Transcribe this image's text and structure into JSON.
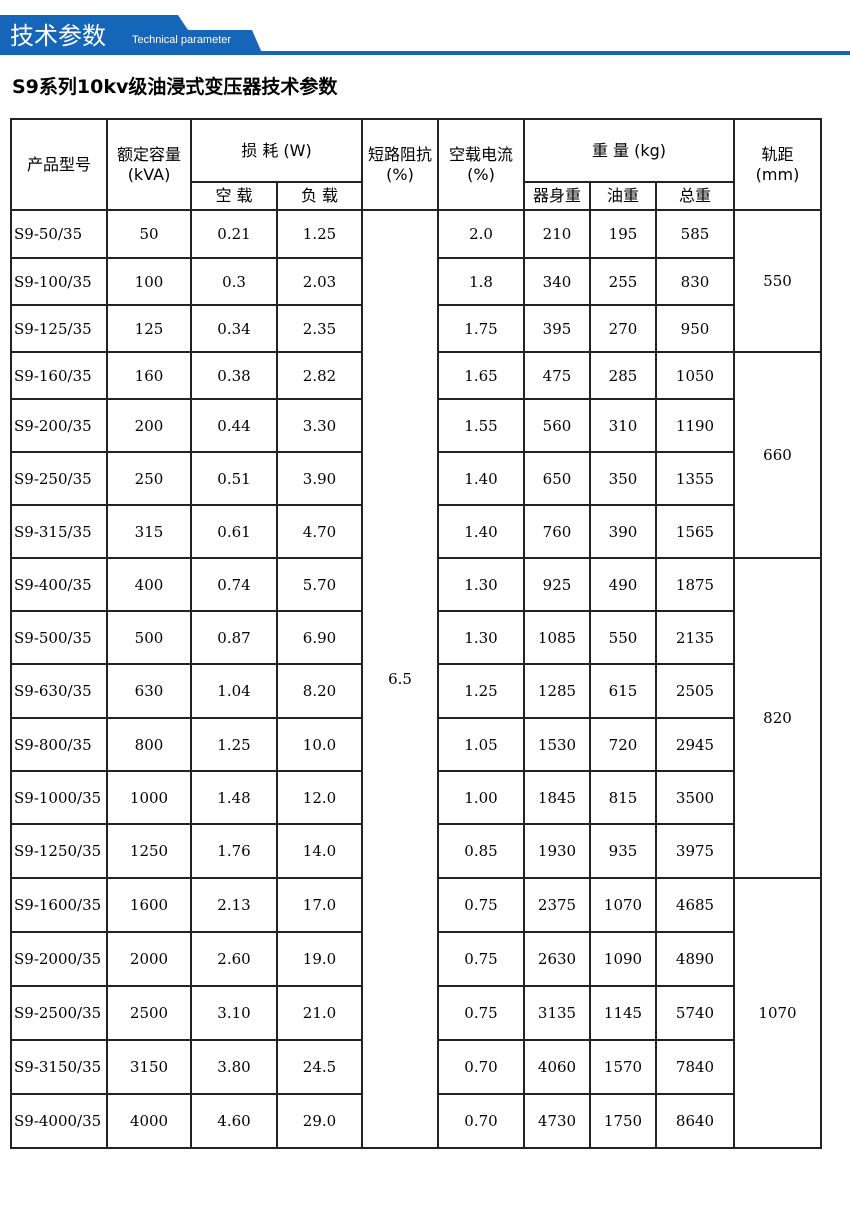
{
  "header": {
    "title": "技术参数",
    "subtitle": "Technical parameter",
    "accent": "#1565b8"
  },
  "doc_title": "S9系列10kv级油浸式变压器技术参数",
  "table": {
    "headers": {
      "model": "产品型号",
      "capacity": "额定容量",
      "capacity_unit": "(kVA)",
      "loss": "损 耗 (W)",
      "no_load": "空 载",
      "load": "负 载",
      "impedance": "短路阻抗",
      "impedance_unit": "(%)",
      "current": "空载电流",
      "current_unit": "(%)",
      "weight": "重 量 (kg)",
      "body": "器身重",
      "oil": "油重",
      "total": "总重",
      "rail": "轨距",
      "rail_unit": "(mm)"
    },
    "impedance": "6.5",
    "rows": [
      [
        "S9-50/35",
        "50",
        "0.21",
        "1.25",
        "2.0",
        "210",
        "195",
        "585"
      ],
      [
        "S9-100/35",
        "100",
        "0.3",
        "2.03",
        "1.8",
        "340",
        "255",
        "830"
      ],
      [
        "S9-125/35",
        "125",
        "0.34",
        "2.35",
        "1.75",
        "395",
        "270",
        "950"
      ],
      [
        "S9-160/35",
        "160",
        "0.38",
        "2.82",
        "1.65",
        "475",
        "285",
        "1050"
      ],
      [
        "S9-200/35",
        "200",
        "0.44",
        "3.30",
        "1.55",
        "560",
        "310",
        "1190"
      ],
      [
        "S9-250/35",
        "250",
        "0.51",
        "3.90",
        "1.40",
        "650",
        "350",
        "1355"
      ],
      [
        "S9-315/35",
        "315",
        "0.61",
        "4.70",
        "1.40",
        "760",
        "390",
        "1565"
      ],
      [
        "S9-400/35",
        "400",
        "0.74",
        "5.70",
        "1.30",
        "925",
        "490",
        "1875"
      ],
      [
        "S9-500/35",
        "500",
        "0.87",
        "6.90",
        "1.30",
        "1085",
        "550",
        "2135"
      ],
      [
        "S9-630/35",
        "630",
        "1.04",
        "8.20",
        "1.25",
        "1285",
        "615",
        "2505"
      ],
      [
        "S9-800/35",
        "800",
        "1.25",
        "10.0",
        "1.05",
        "1530",
        "720",
        "2945"
      ],
      [
        "S9-1000/35",
        "1000",
        "1.48",
        "12.0",
        "1.00",
        "1845",
        "815",
        "3500"
      ],
      [
        "S9-1250/35",
        "1250",
        "1.76",
        "14.0",
        "0.85",
        "1930",
        "935",
        "3975"
      ],
      [
        "S9-1600/35",
        "1600",
        "2.13",
        "17.0",
        "0.75",
        "2375",
        "1070",
        "4685"
      ],
      [
        "S9-2000/35",
        "2000",
        "2.60",
        "19.0",
        "0.75",
        "2630",
        "1090",
        "4890"
      ],
      [
        "S9-2500/35",
        "2500",
        "3.10",
        "21.0",
        "0.75",
        "3135",
        "1145",
        "5740"
      ],
      [
        "S9-3150/35",
        "3150",
        "3.80",
        "24.5",
        "0.70",
        "4060",
        "1570",
        "7840"
      ],
      [
        "S9-4000/35",
        "4000",
        "4.60",
        "29.0",
        "0.70",
        "4730",
        "1750",
        "8640"
      ]
    ],
    "rail_groups": [
      {
        "value": "550",
        "rows": 3
      },
      {
        "value": "660",
        "rows": 4
      },
      {
        "value": "820",
        "rows": 6
      },
      {
        "value": "1070",
        "rows": 5
      }
    ]
  }
}
